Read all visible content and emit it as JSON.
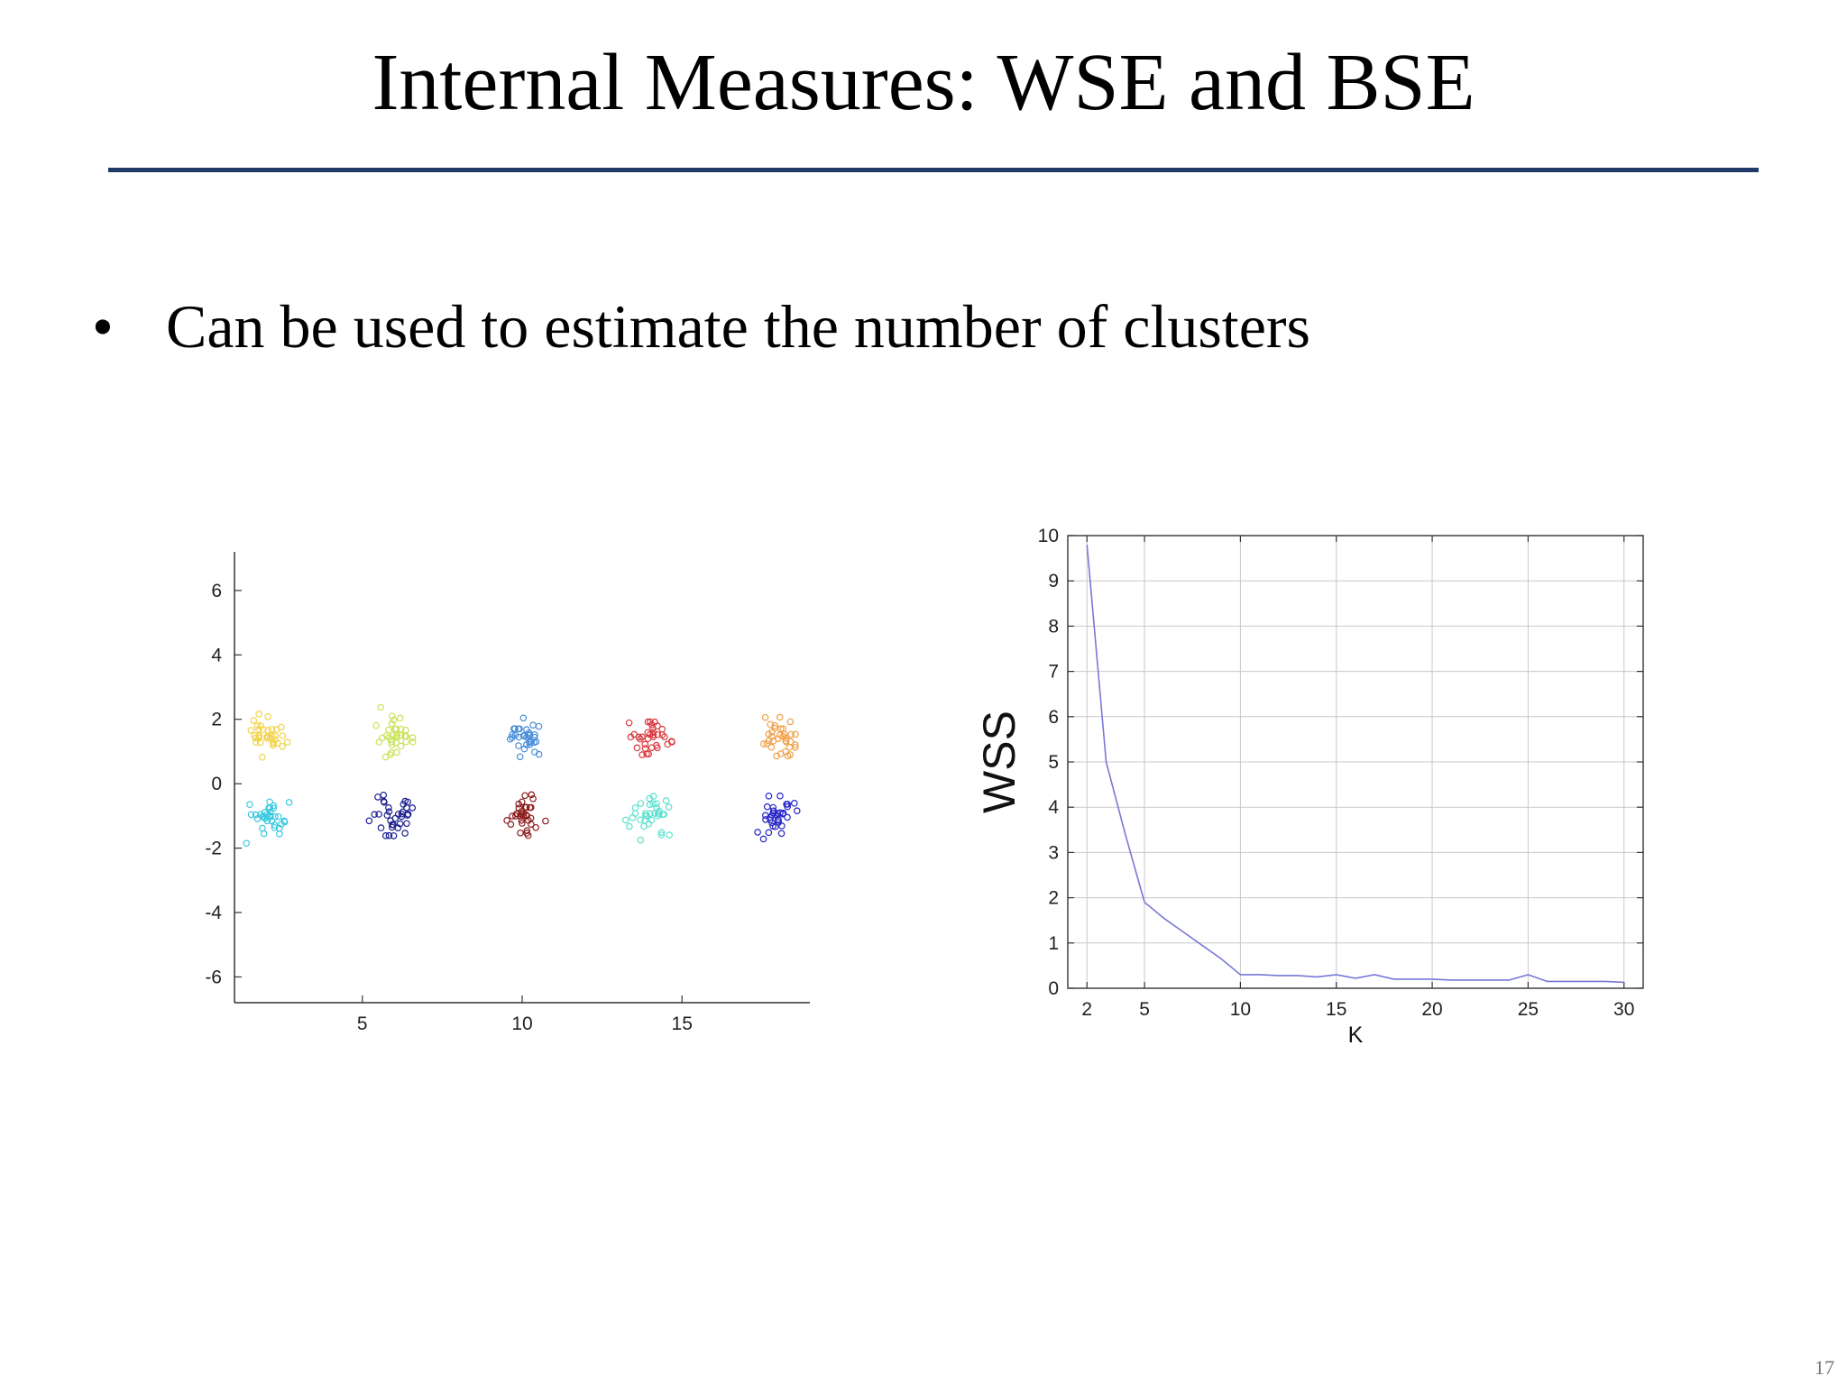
{
  "slide": {
    "title": "Internal Measures: WSE and BSE",
    "bullet_marker": "•",
    "bullet": "Can be used to estimate the number of clusters",
    "page_number": "17"
  },
  "chart_data": [
    {
      "type": "scatter",
      "title": "",
      "xlabel": "",
      "ylabel": "",
      "xlim": [
        1,
        19
      ],
      "ylim": [
        -6.8,
        7.2
      ],
      "xticks": [
        5,
        10,
        15
      ],
      "yticks": [
        6,
        4,
        2,
        0,
        -2,
        -4,
        -6
      ],
      "grid": false,
      "clusters": [
        {
          "center": [
            2,
            1.5
          ],
          "color": "#f2d34a"
        },
        {
          "center": [
            6,
            1.5
          ],
          "color": "#c9e25a"
        },
        {
          "center": [
            10,
            1.5
          ],
          "color": "#4a8fd8"
        },
        {
          "center": [
            14,
            1.5
          ],
          "color": "#d9393f"
        },
        {
          "center": [
            18,
            1.5
          ],
          "color": "#f0a04b"
        },
        {
          "center": [
            2,
            -1
          ],
          "color": "#38c8e0"
        },
        {
          "center": [
            6,
            -1
          ],
          "color": "#1c1f8f"
        },
        {
          "center": [
            10,
            -1
          ],
          "color": "#8b1a1a"
        },
        {
          "center": [
            14,
            -1
          ],
          "color": "#5fe0cf"
        },
        {
          "center": [
            18,
            -1
          ],
          "color": "#2626c8"
        }
      ]
    },
    {
      "type": "line",
      "title": "",
      "xlabel": "K",
      "ylabel": "WSS",
      "xlim": [
        1,
        31
      ],
      "ylim": [
        0,
        10
      ],
      "xticks": [
        2,
        5,
        10,
        15,
        20,
        25,
        30
      ],
      "yticks": [
        0,
        1,
        2,
        3,
        4,
        5,
        6,
        7,
        8,
        9,
        10
      ],
      "grid": true,
      "series": [
        {
          "color": "#7878d8",
          "x": [
            2,
            3,
            4,
            5,
            6,
            7,
            8,
            9,
            10,
            11,
            12,
            13,
            14,
            15,
            16,
            17,
            18,
            19,
            20,
            21,
            22,
            23,
            24,
            25,
            26,
            27,
            28,
            29,
            30
          ],
          "y": [
            9.8,
            5.0,
            3.4,
            1.9,
            1.55,
            1.25,
            0.95,
            0.65,
            0.3,
            0.3,
            0.28,
            0.28,
            0.25,
            0.3,
            0.22,
            0.3,
            0.2,
            0.2,
            0.2,
            0.18,
            0.18,
            0.18,
            0.18,
            0.3,
            0.15,
            0.15,
            0.15,
            0.15,
            0.13
          ]
        }
      ]
    }
  ]
}
